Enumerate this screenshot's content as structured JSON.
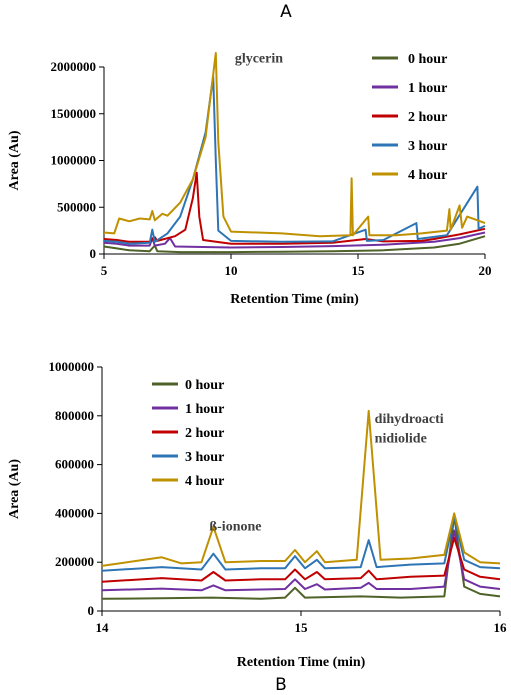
{
  "chart_data": [
    {
      "type": "line",
      "panel": "A",
      "xlabel": "Retention Time (min)",
      "ylabel": "Area (Au)",
      "xlim": [
        5,
        20
      ],
      "ylim": [
        0,
        2000000
      ],
      "x_ticks": [
        5,
        10,
        15,
        20
      ],
      "y_ticks": [
        0,
        500000,
        1000000,
        1500000,
        2000000
      ],
      "x_tick_labels": [
        "5",
        "10",
        "15",
        "20"
      ],
      "y_tick_labels": [
        "0",
        "500000",
        "1000000",
        "1500000",
        "2000000"
      ],
      "legend_position": "top-right",
      "annotations": [
        {
          "text": "glycerin",
          "x": 9.6,
          "y": 2050000
        }
      ],
      "series": [
        {
          "name": "0 hour",
          "color": "#4f6228",
          "points": [
            [
              5,
              80000
            ],
            [
              5.5,
              60000
            ],
            [
              6,
              40000
            ],
            [
              6.8,
              30000
            ],
            [
              7,
              90000
            ],
            [
              7.1,
              30000
            ],
            [
              8,
              20000
            ],
            [
              10,
              20000
            ],
            [
              12,
              25000
            ],
            [
              14,
              30000
            ],
            [
              16,
              40000
            ],
            [
              18,
              70000
            ],
            [
              19,
              110000
            ],
            [
              20,
              190000
            ]
          ]
        },
        {
          "name": "1 hour",
          "color": "#7030a0",
          "points": [
            [
              5,
              120000
            ],
            [
              5.5,
              110000
            ],
            [
              6,
              90000
            ],
            [
              6.8,
              90000
            ],
            [
              6.9,
              170000
            ],
            [
              7,
              90000
            ],
            [
              7.4,
              110000
            ],
            [
              7.6,
              170000
            ],
            [
              7.8,
              80000
            ],
            [
              10,
              70000
            ],
            [
              12,
              75000
            ],
            [
              14,
              85000
            ],
            [
              16,
              100000
            ],
            [
              18,
              130000
            ],
            [
              19,
              170000
            ],
            [
              20,
              230000
            ]
          ]
        },
        {
          "name": "2 hour",
          "color": "#c00000",
          "points": [
            [
              5,
              160000
            ],
            [
              5.5,
              150000
            ],
            [
              6,
              130000
            ],
            [
              6.8,
              130000
            ],
            [
              7,
              180000
            ],
            [
              7.1,
              140000
            ],
            [
              7.8,
              190000
            ],
            [
              8.2,
              260000
            ],
            [
              8.5,
              600000
            ],
            [
              8.65,
              870000
            ],
            [
              8.75,
              400000
            ],
            [
              8.9,
              150000
            ],
            [
              10,
              110000
            ],
            [
              12,
              110000
            ],
            [
              14,
              120000
            ],
            [
              15.3,
              160000
            ],
            [
              16,
              135000
            ],
            [
              17.5,
              140000
            ],
            [
              18,
              160000
            ],
            [
              19,
              210000
            ],
            [
              20,
              270000
            ]
          ]
        },
        {
          "name": "3 hour",
          "color": "#2e75b6",
          "points": [
            [
              5,
              140000
            ],
            [
              5.5,
              130000
            ],
            [
              6,
              110000
            ],
            [
              6.8,
              120000
            ],
            [
              6.9,
              260000
            ],
            [
              7,
              130000
            ],
            [
              7.5,
              220000
            ],
            [
              8,
              400000
            ],
            [
              8.5,
              800000
            ],
            [
              9,
              1300000
            ],
            [
              9.3,
              1900000
            ],
            [
              9.4,
              1000000
            ],
            [
              9.5,
              250000
            ],
            [
              10,
              140000
            ],
            [
              12,
              130000
            ],
            [
              14,
              135000
            ],
            [
              15.3,
              260000
            ],
            [
              15.35,
              140000
            ],
            [
              16,
              150000
            ],
            [
              17.3,
              330000
            ],
            [
              17.35,
              160000
            ],
            [
              18.5,
              200000
            ],
            [
              19.7,
              720000
            ],
            [
              19.75,
              270000
            ],
            [
              20,
              300000
            ]
          ]
        },
        {
          "name": "4 hour",
          "color": "#bf9000",
          "points": [
            [
              5,
              230000
            ],
            [
              5.4,
              220000
            ],
            [
              5.6,
              380000
            ],
            [
              6,
              350000
            ],
            [
              6.4,
              380000
            ],
            [
              6.8,
              370000
            ],
            [
              6.9,
              460000
            ],
            [
              7,
              360000
            ],
            [
              7.3,
              430000
            ],
            [
              7.5,
              410000
            ],
            [
              8,
              550000
            ],
            [
              8.5,
              800000
            ],
            [
              9,
              1250000
            ],
            [
              9.4,
              2150000
            ],
            [
              9.5,
              1200000
            ],
            [
              9.7,
              400000
            ],
            [
              10,
              240000
            ],
            [
              12,
              220000
            ],
            [
              13.5,
              190000
            ],
            [
              14.7,
              200000
            ],
            [
              14.75,
              810000
            ],
            [
              14.8,
              200000
            ],
            [
              15.4,
              400000
            ],
            [
              15.45,
              200000
            ],
            [
              16.5,
              200000
            ],
            [
              17.5,
              220000
            ],
            [
              18.5,
              250000
            ],
            [
              18.6,
              480000
            ],
            [
              18.65,
              260000
            ],
            [
              19,
              520000
            ],
            [
              19.1,
              280000
            ],
            [
              19.3,
              400000
            ],
            [
              20,
              330000
            ]
          ]
        }
      ]
    },
    {
      "type": "line",
      "panel": "B",
      "xlabel": "Retention Time (min)",
      "ylabel": "Area (Au)",
      "xlim": [
        14,
        16
      ],
      "ylim": [
        0,
        1000000
      ],
      "x_ticks": [
        14,
        15,
        16
      ],
      "y_ticks": [
        0,
        200000,
        400000,
        600000,
        800000,
        1000000
      ],
      "x_tick_labels": [
        "14",
        "15",
        "16"
      ],
      "y_tick_labels": [
        "0",
        "200000",
        "400000",
        "600000",
        "800000",
        "1000000"
      ],
      "legend_position": "top-left",
      "annotations": [
        {
          "text": "ß-ionone",
          "x": 14.63,
          "y": 330000
        },
        {
          "text": "dihydroacti",
          "x": 15.34,
          "y": 770000
        },
        {
          "text": "nidiolide",
          "x": 15.34,
          "y": 690000
        }
      ],
      "series": [
        {
          "name": "0 hour",
          "color": "#4f6228",
          "points": [
            [
              14,
              50000
            ],
            [
              14.3,
              52000
            ],
            [
              14.55,
              55000
            ],
            [
              14.8,
              50000
            ],
            [
              14.92,
              55000
            ],
            [
              14.97,
              95000
            ],
            [
              15.02,
              55000
            ],
            [
              15.3,
              60000
            ],
            [
              15.5,
              55000
            ],
            [
              15.72,
              60000
            ],
            [
              15.77,
              390000
            ],
            [
              15.82,
              100000
            ],
            [
              15.9,
              70000
            ],
            [
              16,
              60000
            ]
          ]
        },
        {
          "name": "1 hour",
          "color": "#7030a0",
          "points": [
            [
              14,
              85000
            ],
            [
              14.3,
              92000
            ],
            [
              14.5,
              85000
            ],
            [
              14.56,
              105000
            ],
            [
              14.62,
              85000
            ],
            [
              14.8,
              88000
            ],
            [
              14.92,
              90000
            ],
            [
              14.97,
              130000
            ],
            [
              15.02,
              90000
            ],
            [
              15.08,
              110000
            ],
            [
              15.12,
              88000
            ],
            [
              15.3,
              95000
            ],
            [
              15.34,
              115000
            ],
            [
              15.38,
              90000
            ],
            [
              15.55,
              90000
            ],
            [
              15.72,
              100000
            ],
            [
              15.77,
              330000
            ],
            [
              15.82,
              130000
            ],
            [
              15.9,
              100000
            ],
            [
              16,
              90000
            ]
          ]
        },
        {
          "name": "2 hour",
          "color": "#c00000",
          "points": [
            [
              14,
              120000
            ],
            [
              14.3,
              135000
            ],
            [
              14.5,
              125000
            ],
            [
              14.56,
              160000
            ],
            [
              14.62,
              125000
            ],
            [
              14.8,
              130000
            ],
            [
              14.92,
              130000
            ],
            [
              14.97,
              170000
            ],
            [
              15.02,
              130000
            ],
            [
              15.08,
              160000
            ],
            [
              15.12,
              130000
            ],
            [
              15.3,
              135000
            ],
            [
              15.34,
              165000
            ],
            [
              15.38,
              130000
            ],
            [
              15.55,
              140000
            ],
            [
              15.72,
              145000
            ],
            [
              15.77,
              300000
            ],
            [
              15.82,
              170000
            ],
            [
              15.9,
              140000
            ],
            [
              16,
              130000
            ]
          ]
        },
        {
          "name": "3 hour",
          "color": "#2e75b6",
          "points": [
            [
              14,
              165000
            ],
            [
              14.3,
              180000
            ],
            [
              14.5,
              170000
            ],
            [
              14.56,
              235000
            ],
            [
              14.62,
              170000
            ],
            [
              14.8,
              175000
            ],
            [
              14.92,
              175000
            ],
            [
              14.97,
              225000
            ],
            [
              15.02,
              175000
            ],
            [
              15.08,
              210000
            ],
            [
              15.12,
              175000
            ],
            [
              15.3,
              180000
            ],
            [
              15.34,
              290000
            ],
            [
              15.38,
              180000
            ],
            [
              15.55,
              190000
            ],
            [
              15.72,
              195000
            ],
            [
              15.77,
              390000
            ],
            [
              15.82,
              210000
            ],
            [
              15.9,
              180000
            ],
            [
              16,
              175000
            ]
          ]
        },
        {
          "name": "4 hour",
          "color": "#bf9000",
          "points": [
            [
              14,
              185000
            ],
            [
              14.3,
              220000
            ],
            [
              14.4,
              195000
            ],
            [
              14.5,
              200000
            ],
            [
              14.56,
              345000
            ],
            [
              14.62,
              200000
            ],
            [
              14.8,
              205000
            ],
            [
              14.92,
              205000
            ],
            [
              14.97,
              250000
            ],
            [
              15.02,
              200000
            ],
            [
              15.08,
              245000
            ],
            [
              15.12,
              200000
            ],
            [
              15.28,
              210000
            ],
            [
              15.34,
              820000
            ],
            [
              15.4,
              210000
            ],
            [
              15.55,
              215000
            ],
            [
              15.72,
              230000
            ],
            [
              15.77,
              400000
            ],
            [
              15.82,
              240000
            ],
            [
              15.9,
              200000
            ],
            [
              16,
              195000
            ]
          ]
        }
      ]
    }
  ],
  "labels": {
    "panel_a": "A",
    "panel_b": "B"
  }
}
